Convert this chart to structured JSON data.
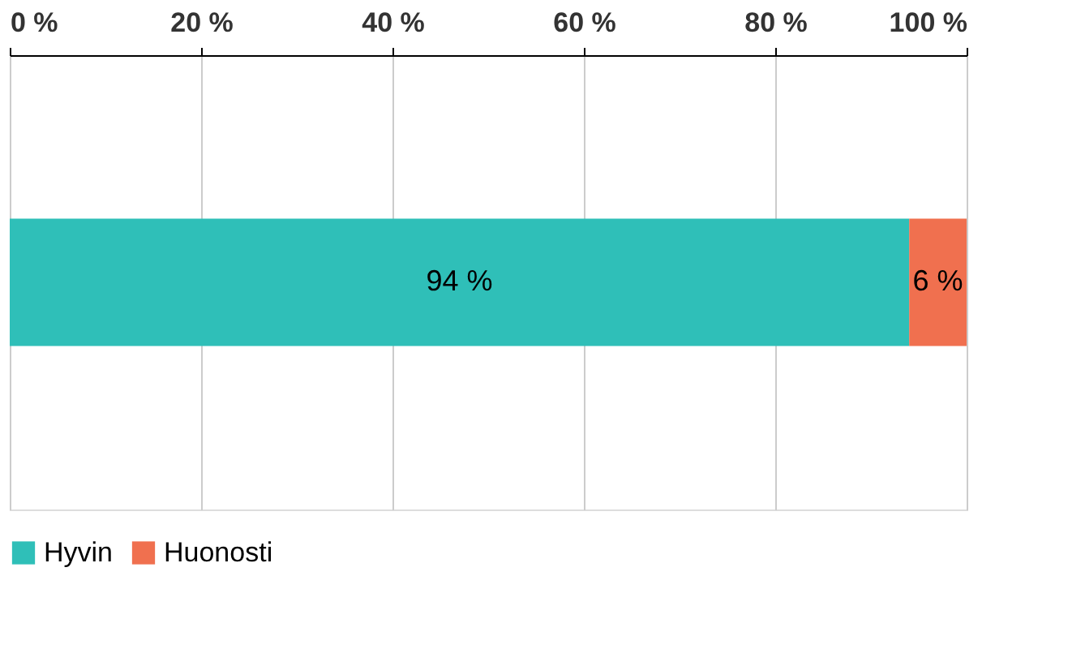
{
  "chart_data": {
    "type": "bar",
    "orientation": "horizontal",
    "stacked": true,
    "categories": [
      null
    ],
    "series": [
      {
        "name": "Hyvin",
        "color": "#2fbfb8",
        "values": [
          94
        ],
        "value_labels": [
          "94 %"
        ]
      },
      {
        "name": "Huonosti",
        "color": "#f0704f",
        "values": [
          6
        ],
        "value_labels": [
          "6 %"
        ]
      }
    ],
    "xlim": [
      0,
      100
    ],
    "xticks": [
      {
        "value": 0,
        "label": "0 %"
      },
      {
        "value": 20,
        "label": "20 %"
      },
      {
        "value": 40,
        "label": "40 %"
      },
      {
        "value": 60,
        "label": "60 %"
      },
      {
        "value": 80,
        "label": "80 %"
      },
      {
        "value": 100,
        "label": "100 %"
      }
    ],
    "grid": "x",
    "legend": "bottom left",
    "tick_labels": "x"
  }
}
